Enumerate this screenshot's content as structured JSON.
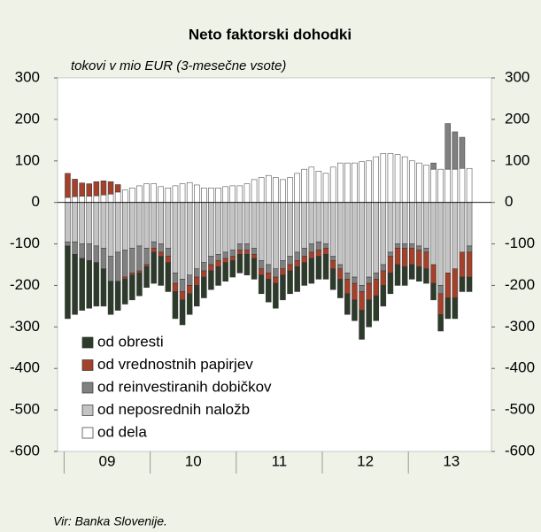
{
  "chart_data": {
    "type": "stacked_bar",
    "title": "Neto faktorski dohodki",
    "subtitle": "tokovi v mio EUR (3-mesečne vsote)",
    "source": "Vir: Banka Slovenije.",
    "year_labels": [
      "09",
      "10",
      "11",
      "12",
      "13"
    ],
    "ylim": [
      -600,
      300
    ],
    "yticks": [
      -600,
      -500,
      -400,
      -300,
      -200,
      -100,
      0,
      100,
      200,
      300
    ],
    "y2lim": [
      -600,
      300
    ],
    "y2ticks": [
      -600,
      -500,
      -400,
      -300,
      -200,
      -100,
      0,
      100,
      200,
      300
    ],
    "bar_edgecolor": "#333333",
    "series": [
      {
        "name": "od obresti",
        "color": "#2c3b2a",
        "values": [
          -175,
          -145,
          -125,
          -115,
          -105,
          -90,
          -80,
          -70,
          -60,
          -60,
          -55,
          -50,
          -75,
          -70,
          -70,
          -65,
          -60,
          -50,
          -50,
          -50,
          -45,
          -45,
          -45,
          -40,
          -45,
          -50,
          -50,
          -45,
          -55,
          -60,
          -60,
          -55,
          -60,
          -55,
          -60,
          -55,
          -60,
          -50,
          -45,
          -50,
          -50,
          -70,
          -65,
          -60,
          -50,
          -50,
          -50,
          -45,
          -35,
          -35,
          -35,
          -40,
          -40,
          -50,
          -50,
          -35,
          -35
        ]
      },
      {
        "name": "od vrednostnih papirjev",
        "color": "#a3412a",
        "values": [
          58,
          42,
          32,
          30,
          34,
          34,
          30,
          18,
          -5,
          -5,
          -5,
          -5,
          -10,
          -10,
          -15,
          -20,
          -20,
          -20,
          -20,
          -15,
          -15,
          -15,
          -10,
          -10,
          -10,
          -10,
          -10,
          -15,
          -15,
          -15,
          -15,
          -15,
          -15,
          -15,
          -15,
          -15,
          -15,
          -20,
          -25,
          -35,
          -40,
          -45,
          -40,
          -40,
          -35,
          -40,
          -40,
          -45,
          -40,
          -40,
          -40,
          -45,
          -50,
          -60,
          -70,
          -60,
          -60
        ]
      },
      {
        "name": "od reinvestiranih dobičkov",
        "color": "#808080",
        "values": [
          -10,
          -30,
          -35,
          -40,
          -40,
          -50,
          -60,
          -70,
          -65,
          -60,
          -60,
          -40,
          -15,
          -20,
          -20,
          -25,
          -30,
          -25,
          -20,
          -20,
          -20,
          -15,
          -15,
          -15,
          -15,
          -15,
          -15,
          -20,
          -20,
          -20,
          -20,
          -20,
          -20,
          -20,
          -20,
          -20,
          -10,
          -10,
          -10,
          -15,
          -15,
          -15,
          -15,
          -15,
          -15,
          -10,
          -10,
          -10,
          -10,
          -10,
          -10,
          15,
          -20,
          110,
          90,
          75,
          -15
        ]
      },
      {
        "name": "od neposrednih naložb",
        "color": "#c4c4c4",
        "values": [
          -95,
          -95,
          -100,
          -100,
          -105,
          -110,
          -130,
          -120,
          -115,
          -110,
          -105,
          -110,
          -95,
          -100,
          -110,
          -170,
          -185,
          -175,
          -160,
          -145,
          -130,
          -125,
          -120,
          -115,
          -100,
          -100,
          -110,
          -140,
          -150,
          -160,
          -140,
          -130,
          -120,
          -110,
          -100,
          -95,
          -100,
          -130,
          -150,
          -170,
          -180,
          -200,
          -180,
          -170,
          -150,
          -120,
          -100,
          -100,
          -100,
          -105,
          -110,
          -150,
          -200,
          -170,
          -160,
          -120,
          -105
        ]
      },
      {
        "name": "od dela",
        "color": "#ffffff",
        "values": [
          12,
          14,
          15,
          15,
          16,
          18,
          20,
          25,
          30,
          35,
          40,
          45,
          45,
          38,
          35,
          40,
          45,
          48,
          42,
          35,
          35,
          35,
          38,
          40,
          40,
          45,
          55,
          60,
          65,
          60,
          55,
          60,
          70,
          80,
          85,
          75,
          70,
          85,
          95,
          95,
          95,
          98,
          100,
          110,
          118,
          118,
          115,
          110,
          100,
          95,
          90,
          80,
          80,
          80,
          80,
          82,
          82
        ]
      }
    ]
  }
}
